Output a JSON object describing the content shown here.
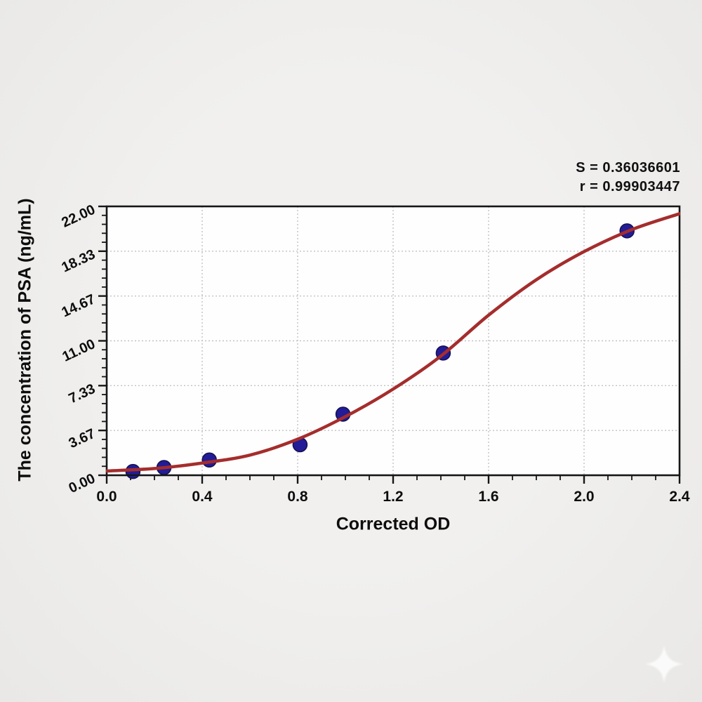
{
  "figure": {
    "background_color": "#eeedec",
    "plot_background_color": "#fefefe",
    "frame_color": "#161616",
    "grid_color": "#c2c2c2",
    "text_color": "#0d0d0d"
  },
  "annotation": {
    "s_line": "S = 0.36036601",
    "r_line": "r = 0.99903447"
  },
  "watermark": {
    "icon": "sparkle-star-icon",
    "color": "#ffffff"
  },
  "chart_data": {
    "type": "scatter",
    "title": "",
    "xlabel": "Corrected OD",
    "ylabel": "The concentration of PSA (ng/mL)",
    "xlim": [
      0,
      2.4
    ],
    "ylim": [
      0,
      22
    ],
    "grid": "dotted at major ticks, inside frame only",
    "legend": "none",
    "x_ticks": {
      "values": [
        0.0,
        0.4,
        0.8,
        1.2,
        1.6,
        2.0,
        2.4
      ],
      "labels": [
        "0.0",
        "0.4",
        "0.8",
        "1.2",
        "1.6",
        "2.0",
        "2.4"
      ],
      "minor_step": 0.1
    },
    "y_ticks": {
      "values": [
        0,
        3.6667,
        7.3333,
        11,
        14.6667,
        18.3333,
        22
      ],
      "labels": [
        "0.00",
        "3.67",
        "7.33",
        "11.00",
        "14.67",
        "18.33",
        "22.00"
      ],
      "minor_step": 0.73333,
      "label_rotation_deg": -25
    },
    "series": [
      {
        "name": "standard-points",
        "type": "scatter",
        "marker": "circle",
        "marker_radius": 10,
        "marker_fill": "#221c96",
        "marker_stroke": "#15104f",
        "points": [
          {
            "od": 0.11,
            "conc": 0.31
          },
          {
            "od": 0.24,
            "conc": 0.63
          },
          {
            "od": 0.43,
            "conc": 1.25
          },
          {
            "od": 0.81,
            "conc": 2.5
          },
          {
            "od": 0.99,
            "conc": 5.0
          },
          {
            "od": 1.41,
            "conc": 10.0
          },
          {
            "od": 2.18,
            "conc": 20.0
          }
        ]
      },
      {
        "name": "4pl-fit-curve",
        "type": "line",
        "line_color": "#a52d2d",
        "line_width": 4.5,
        "points": [
          [
            0.0,
            0.35
          ],
          [
            0.2,
            0.55
          ],
          [
            0.4,
            1.0
          ],
          [
            0.6,
            1.65
          ],
          [
            0.8,
            2.95
          ],
          [
            1.0,
            4.8
          ],
          [
            1.2,
            7.05
          ],
          [
            1.4,
            9.75
          ],
          [
            1.6,
            13.1
          ],
          [
            1.8,
            16.0
          ],
          [
            2.0,
            18.3
          ],
          [
            2.2,
            20.1
          ],
          [
            2.4,
            21.4
          ]
        ]
      }
    ],
    "stats": {
      "S": "0.36036601",
      "r": "0.99903447"
    }
  }
}
